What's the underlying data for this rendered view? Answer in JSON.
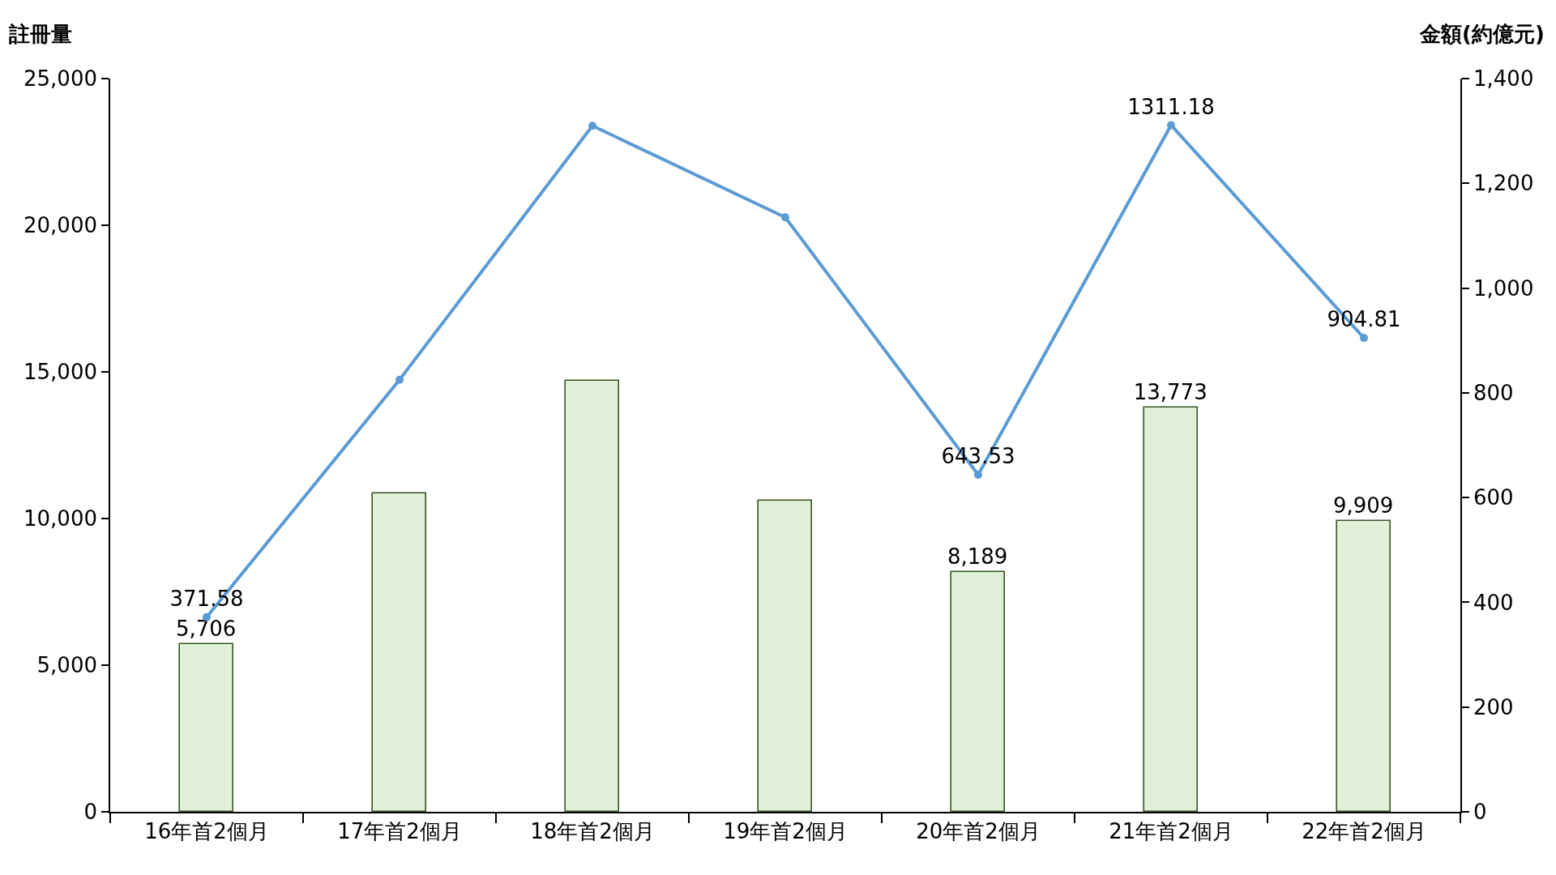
{
  "chart_data": {
    "type": "bar",
    "categories": [
      "16年首2個月",
      "17年首2個月",
      "18年首2個月",
      "19年首2個月",
      "20年首2個月",
      "21年首2個月",
      "22年首2個月"
    ],
    "ylabel": "註冊量",
    "y2label": "金額(約億元)",
    "ylim": [
      0,
      25000
    ],
    "yticks": [
      0,
      {
        "value": 5000,
        "label": "5,000"
      },
      {
        "value": 10000,
        "label": "10,000"
      },
      {
        "value": 15000,
        "label": "15,000"
      },
      {
        "value": 20000,
        "label": "20,000"
      },
      {
        "value": 25000,
        "label": "25,000"
      }
    ],
    "y2lim": [
      0,
      1400
    ],
    "y2ticks": [
      0,
      200,
      400,
      600,
      800,
      {
        "value": 1000,
        "label": "1,000"
      },
      {
        "value": 1200,
        "label": "1,200"
      },
      {
        "value": 1400,
        "label": "1,400"
      }
    ],
    "marker": "circle",
    "line_style": "solid",
    "series": [
      {
        "color": "#e2efd9",
        "values": [
          5706,
          10850,
          14700,
          10600,
          8189,
          13773,
          9909
        ],
        "value_labels": [
          "5,706",
          null,
          null,
          null,
          "8,189",
          "13,773",
          "9,909"
        ]
      },
      {
        "type": "line",
        "axis": "y2",
        "color": "#5b9bd5",
        "values": [
          371.58,
          825,
          1310,
          1135,
          643.53,
          1311.18,
          904.81
        ],
        "value_labels": [
          "371.58",
          null,
          null,
          null,
          "643.53",
          "1311.18",
          "904.81"
        ]
      }
    ]
  }
}
